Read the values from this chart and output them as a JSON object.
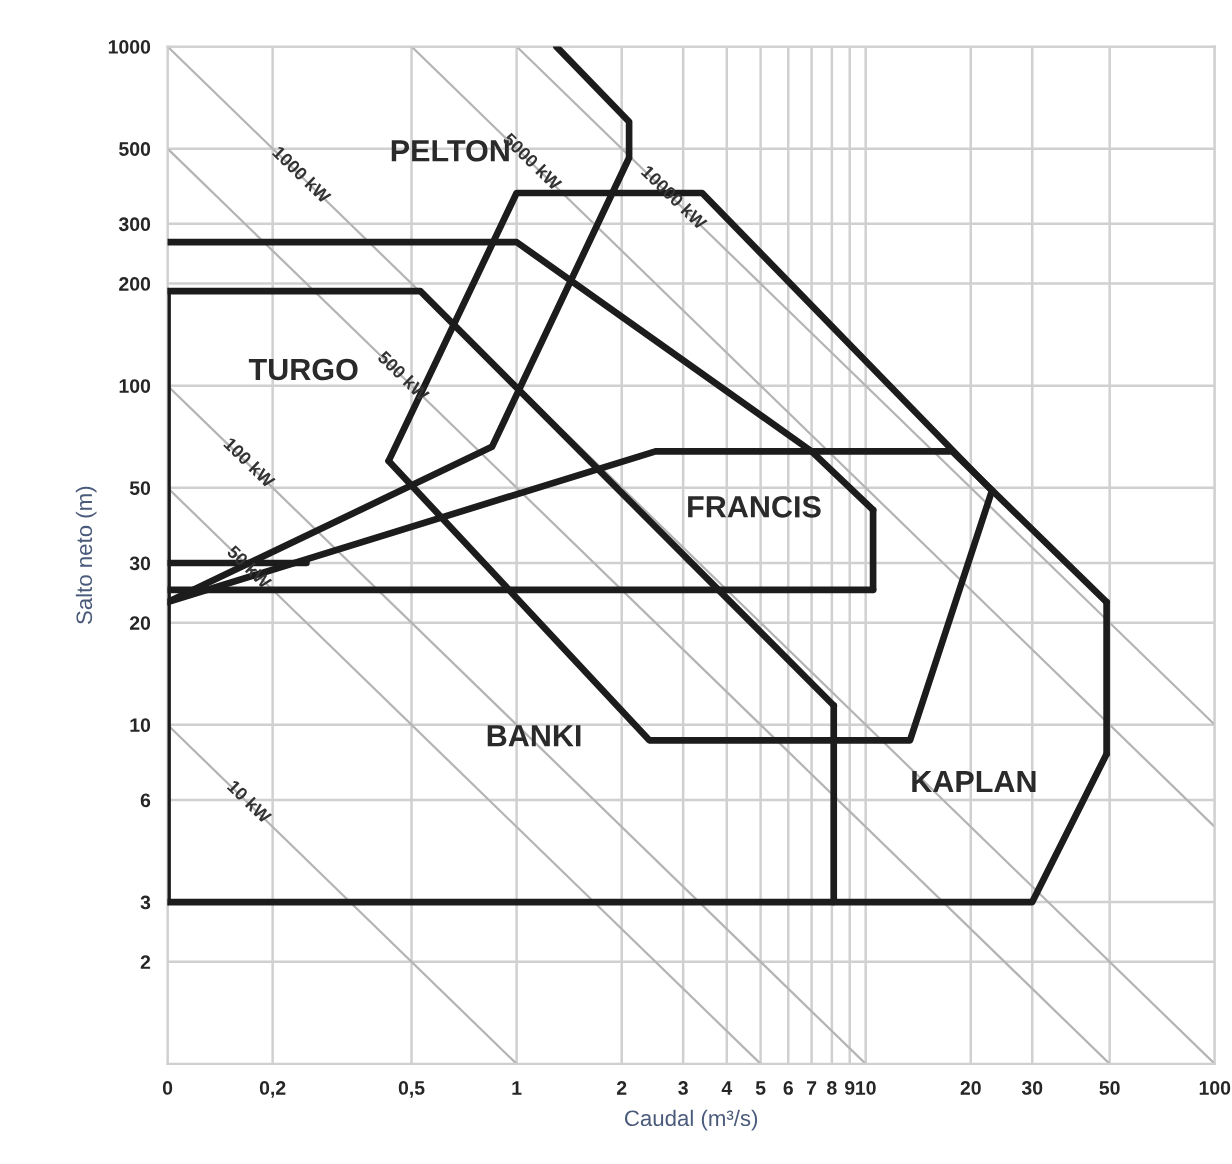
{
  "chart_data": {
    "type": "line",
    "xlabel": "Caudal (m³/s)",
    "ylabel": "Salto neto (m)",
    "log": "xy",
    "grid": true,
    "xlim": [
      0.1,
      100
    ],
    "ylim": [
      1,
      1000
    ],
    "xticks": [
      {
        "value": 0.1,
        "label": "0"
      },
      {
        "value": 0.2,
        "label": "0,2"
      },
      {
        "value": 0.5,
        "label": "0,5"
      },
      1,
      2,
      3,
      4,
      5,
      6,
      7,
      8,
      9,
      10,
      20,
      30,
      50,
      100
    ],
    "yticks": [
      2,
      3,
      6,
      10,
      20,
      30,
      50,
      100,
      200,
      300,
      500,
      1000
    ],
    "series": [
      {
        "color": "#b4b4b4",
        "x": [
          0.1,
          1
        ],
        "values": [
          10,
          1
        ]
      },
      {
        "color": "#b4b4b4",
        "x": [
          0.1,
          5
        ],
        "values": [
          50,
          1
        ]
      },
      {
        "color": "#b4b4b4",
        "x": [
          0.1,
          10
        ],
        "values": [
          100,
          1
        ]
      },
      {
        "color": "#b4b4b4",
        "x": [
          0.1,
          50
        ],
        "values": [
          500,
          1
        ]
      },
      {
        "color": "#b4b4b4",
        "x": [
          0.1,
          100
        ],
        "values": [
          1000,
          1
        ]
      },
      {
        "color": "#b4b4b4",
        "x": [
          0.5,
          100
        ],
        "values": [
          1000,
          5
        ]
      },
      {
        "color": "#b4b4b4",
        "x": [
          1,
          100
        ],
        "values": [
          1000,
          10
        ]
      },
      {
        "color": "#1c1c1c",
        "x": [
          0.1,
          0.85,
          2.1,
          2.1,
          1.3
        ],
        "values": [
          23,
          66,
          470,
          600,
          1000
        ]
      },
      {
        "color": "#1c1c1c",
        "x": [
          0.43,
          1,
          3.4,
          23
        ],
        "values": [
          60,
          370,
          370,
          49
        ]
      },
      {
        "color": "#1c1c1c",
        "x": [
          0.43,
          2.4,
          13.4,
          23
        ],
        "values": [
          60,
          9,
          9,
          49
        ]
      },
      {
        "color": "#1c1c1c",
        "x": [
          0.1,
          2.5,
          17.7,
          49
        ],
        "values": [
          23,
          64,
          64,
          23
        ]
      },
      {
        "color": "#1c1c1c",
        "x": [
          49,
          49
        ],
        "values": [
          23,
          8.2
        ]
      },
      {
        "color": "#1c1c1c",
        "x": [
          0.1,
          30,
          49
        ],
        "values": [
          3,
          3,
          8.2
        ]
      },
      {
        "color": "#1c1c1c",
        "x": [
          0.1,
          1,
          7,
          10.5
        ],
        "values": [
          265,
          265,
          64,
          43
        ]
      },
      {
        "color": "#1c1c1c",
        "x": [
          10.5,
          10.5
        ],
        "values": [
          43,
          25
        ]
      },
      {
        "color": "#1c1c1c",
        "x": [
          0.1,
          10.5
        ],
        "values": [
          25,
          25
        ]
      },
      {
        "color": "#1c1c1c",
        "x": [
          0.1,
          0.25
        ],
        "values": [
          30,
          30
        ]
      },
      {
        "color": "#1c1c1c",
        "x": [
          0.1,
          0.1
        ],
        "values": [
          3,
          190
        ]
      },
      {
        "color": "#1c1c1c",
        "x": [
          0.1,
          0.53,
          8.1
        ],
        "values": [
          190,
          190,
          11.4
        ]
      },
      {
        "color": "#1c1c1c",
        "x": [
          8.1,
          8.1
        ],
        "values": [
          11.4,
          3
        ]
      }
    ],
    "annotations": [
      "PELTON",
      "TURGO",
      "FRANCIS",
      "BANKI",
      "KAPLAN",
      {
        "text": "10 kW",
        "x": 0.17,
        "y": 5.9
      },
      {
        "text": "50 kW",
        "x": 0.17,
        "y": 29
      },
      {
        "text": "100 kW",
        "x": 0.17,
        "y": 59
      },
      {
        "text": "500 kW",
        "x": 0.47,
        "y": 106
      },
      {
        "text": "1000 kW",
        "x": 0.24,
        "y": 417
      },
      {
        "text": "5000 kW",
        "x": 1.1,
        "y": 455
      },
      {
        "text": "10000 kW",
        "x": 2.8,
        "y": 357
      }
    ]
  }
}
